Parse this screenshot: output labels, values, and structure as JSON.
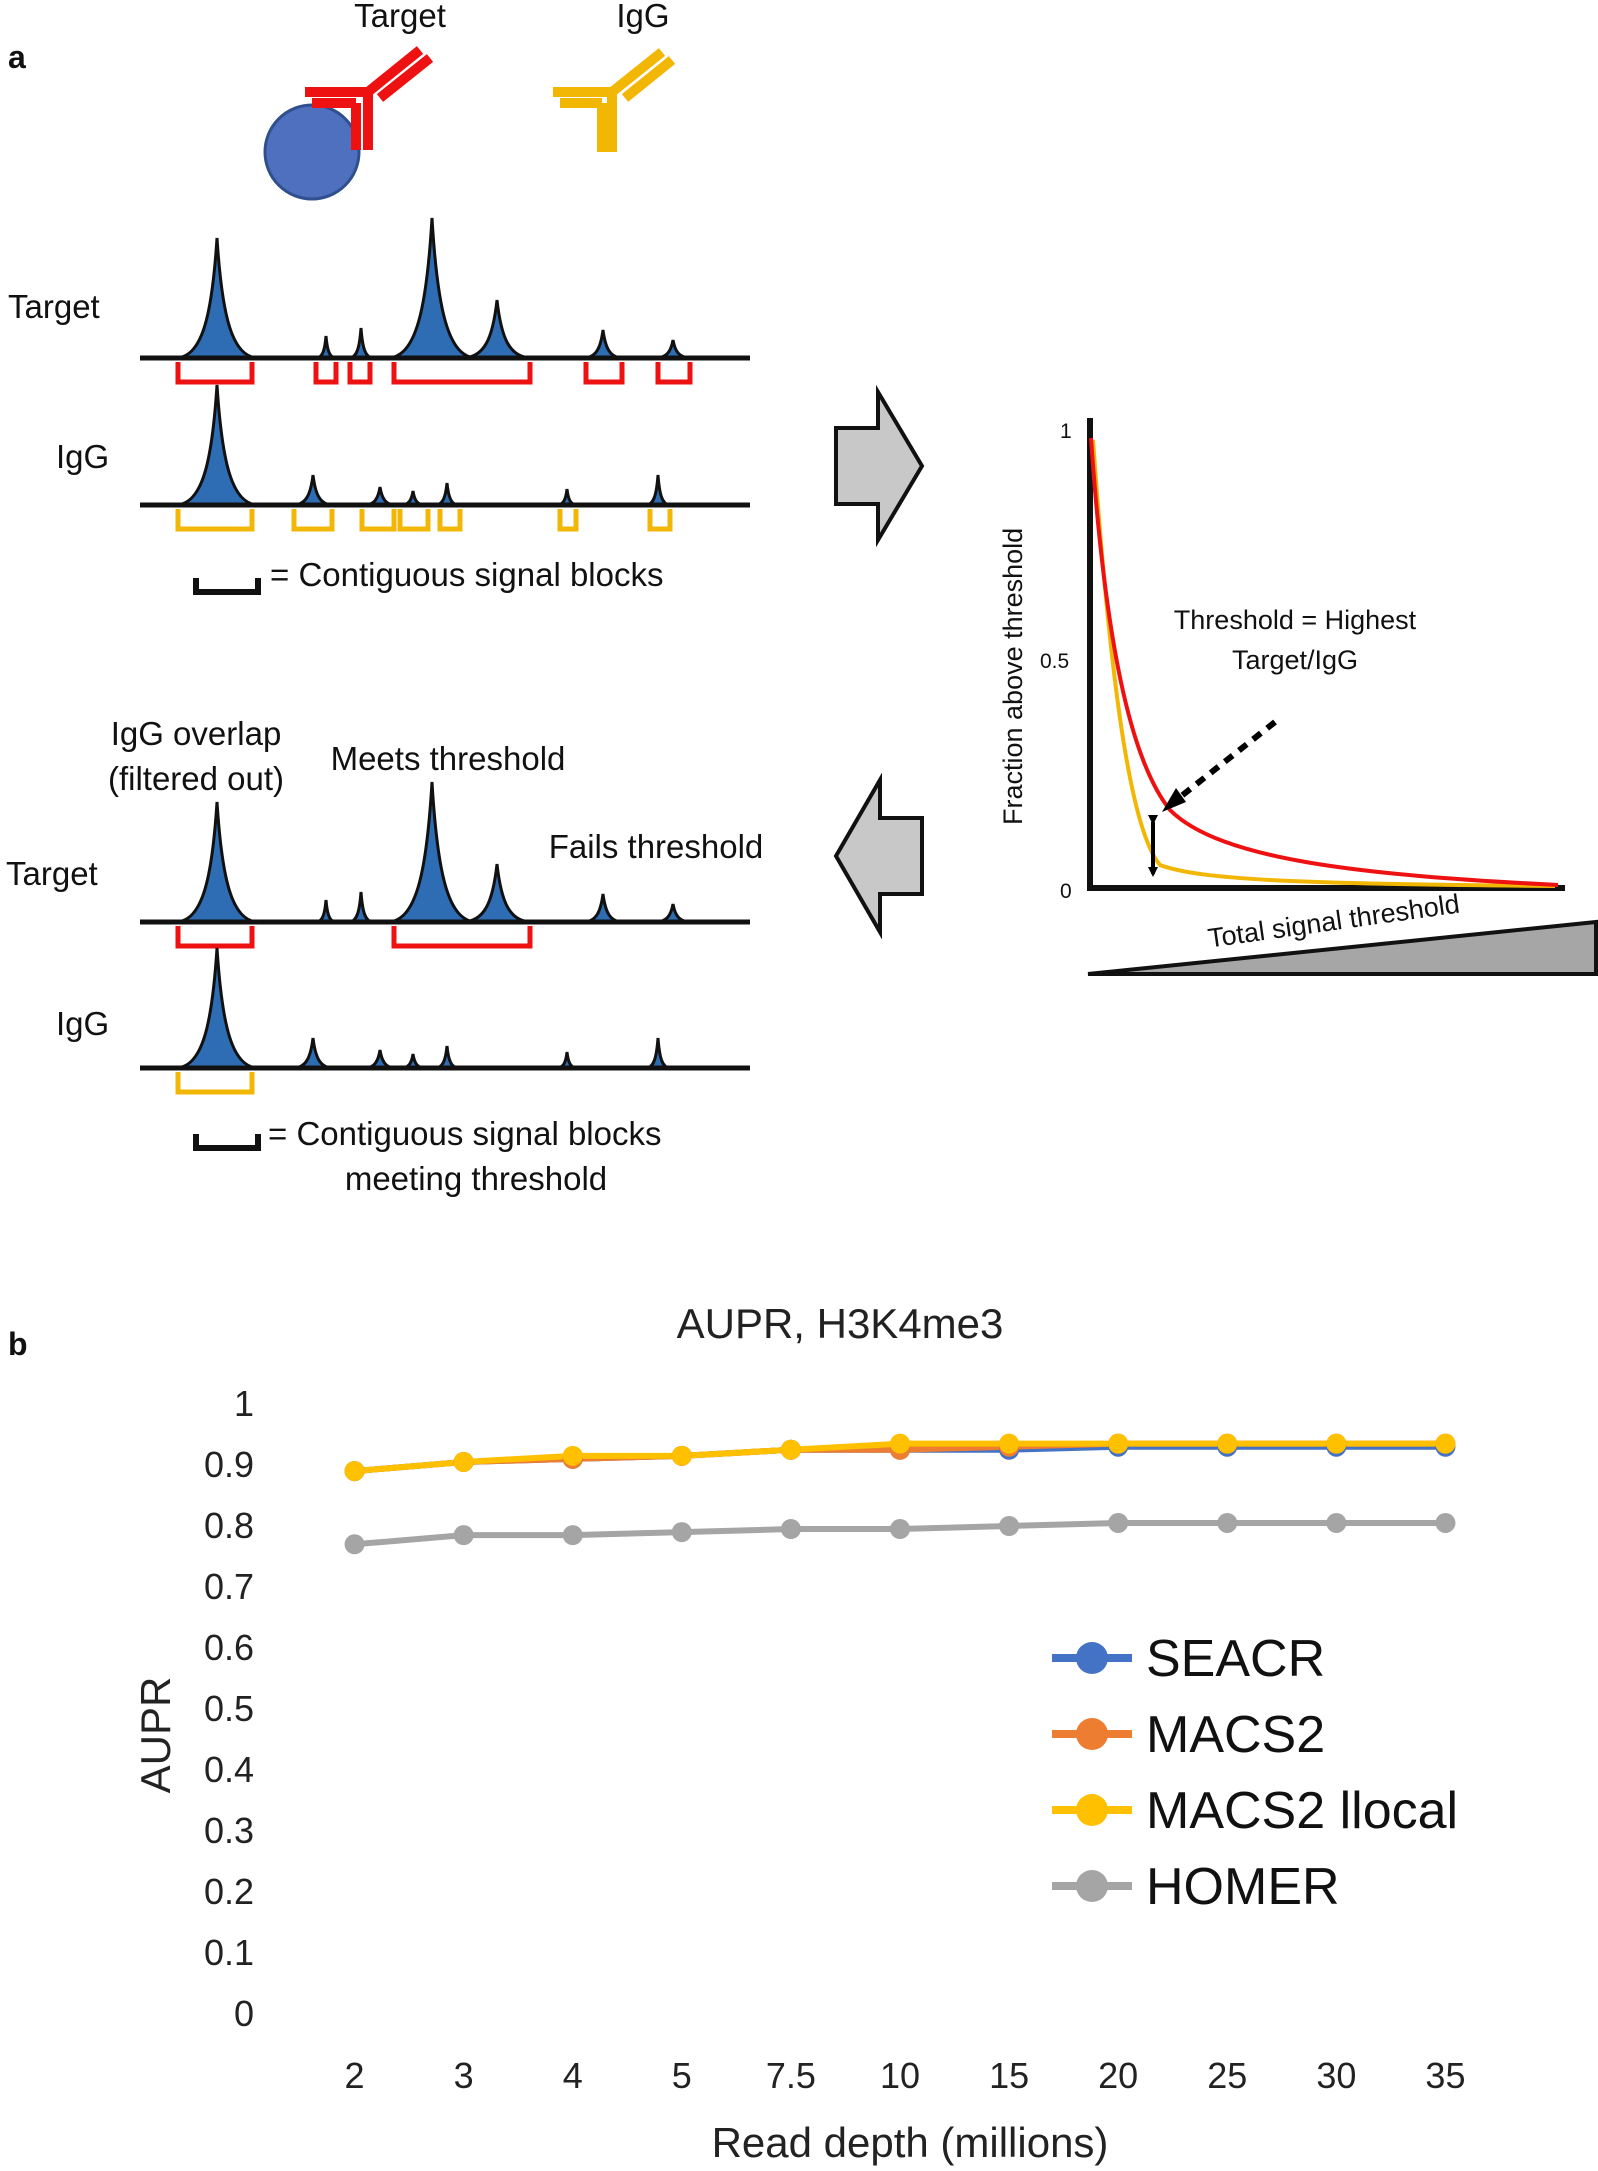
{
  "panel_a": {
    "letter": "a",
    "antibody_target_label": "Target",
    "antibody_igg_label": "IgG",
    "top_track_target_label": "Target",
    "top_track_igg_label": "IgG",
    "top_legend_text": "= Contiguous signal blocks",
    "mini_chart": {
      "ylabel": "Fraction above threshold",
      "xlabel": "Total signal threshold",
      "tick_1": "1",
      "tick_05": "0.5",
      "tick_0": "0",
      "annotation_line1": "Threshold = Highest",
      "annotation_line2": "Target/IgG"
    },
    "bottom_note_igg_line1": "IgG overlap",
    "bottom_note_igg_line2": "(filtered out)",
    "bottom_note_meets": "Meets threshold",
    "bottom_note_fails": "Fails threshold",
    "bottom_track_target_label": "Target",
    "bottom_track_igg_label": "IgG",
    "bottom_legend_line1": "= Contiguous signal blocks",
    "bottom_legend_line2": "meeting threshold",
    "colors": {
      "peak_fill": "#2e6db4",
      "target_red": "#ee1111",
      "igg_yellow": "#f2b705",
      "arrow_grey": "#c8c8c8",
      "cell_blue": "#4f6fbf"
    }
  },
  "panel_b": {
    "letter": "b",
    "chart_data": {
      "type": "line",
      "title": "AUPR, H3K4me3",
      "xlabel": "Read depth (millions)",
      "ylabel": "AUPR",
      "categories": [
        "2",
        "3",
        "4",
        "5",
        "7.5",
        "10",
        "15",
        "20",
        "25",
        "30",
        "35"
      ],
      "ylim": [
        0,
        1
      ],
      "yticks": [
        "0",
        "0.1",
        "0.2",
        "0.3",
        "0.4",
        "0.5",
        "0.6",
        "0.7",
        "0.8",
        "0.9",
        "1"
      ],
      "grid": false,
      "legend_position": "right",
      "series": [
        {
          "name": "SEACR",
          "color": "#4472c4",
          "values": [
            0.89,
            0.905,
            0.91,
            0.915,
            0.925,
            0.925,
            0.925,
            0.93,
            0.93,
            0.93,
            0.93
          ]
        },
        {
          "name": "MACS2",
          "color": "#ed7d31",
          "values": [
            0.89,
            0.905,
            0.91,
            0.915,
            0.925,
            0.925,
            0.93,
            0.935,
            0.935,
            0.935,
            0.935
          ]
        },
        {
          "name": "MACS2 llocal",
          "color": "#ffc000",
          "values": [
            0.89,
            0.905,
            0.915,
            0.915,
            0.925,
            0.935,
            0.935,
            0.935,
            0.935,
            0.935,
            0.935
          ]
        },
        {
          "name": "HOMER",
          "color": "#a5a5a5",
          "values": [
            0.77,
            0.785,
            0.785,
            0.79,
            0.795,
            0.795,
            0.8,
            0.805,
            0.805,
            0.805,
            0.805
          ]
        }
      ]
    }
  }
}
